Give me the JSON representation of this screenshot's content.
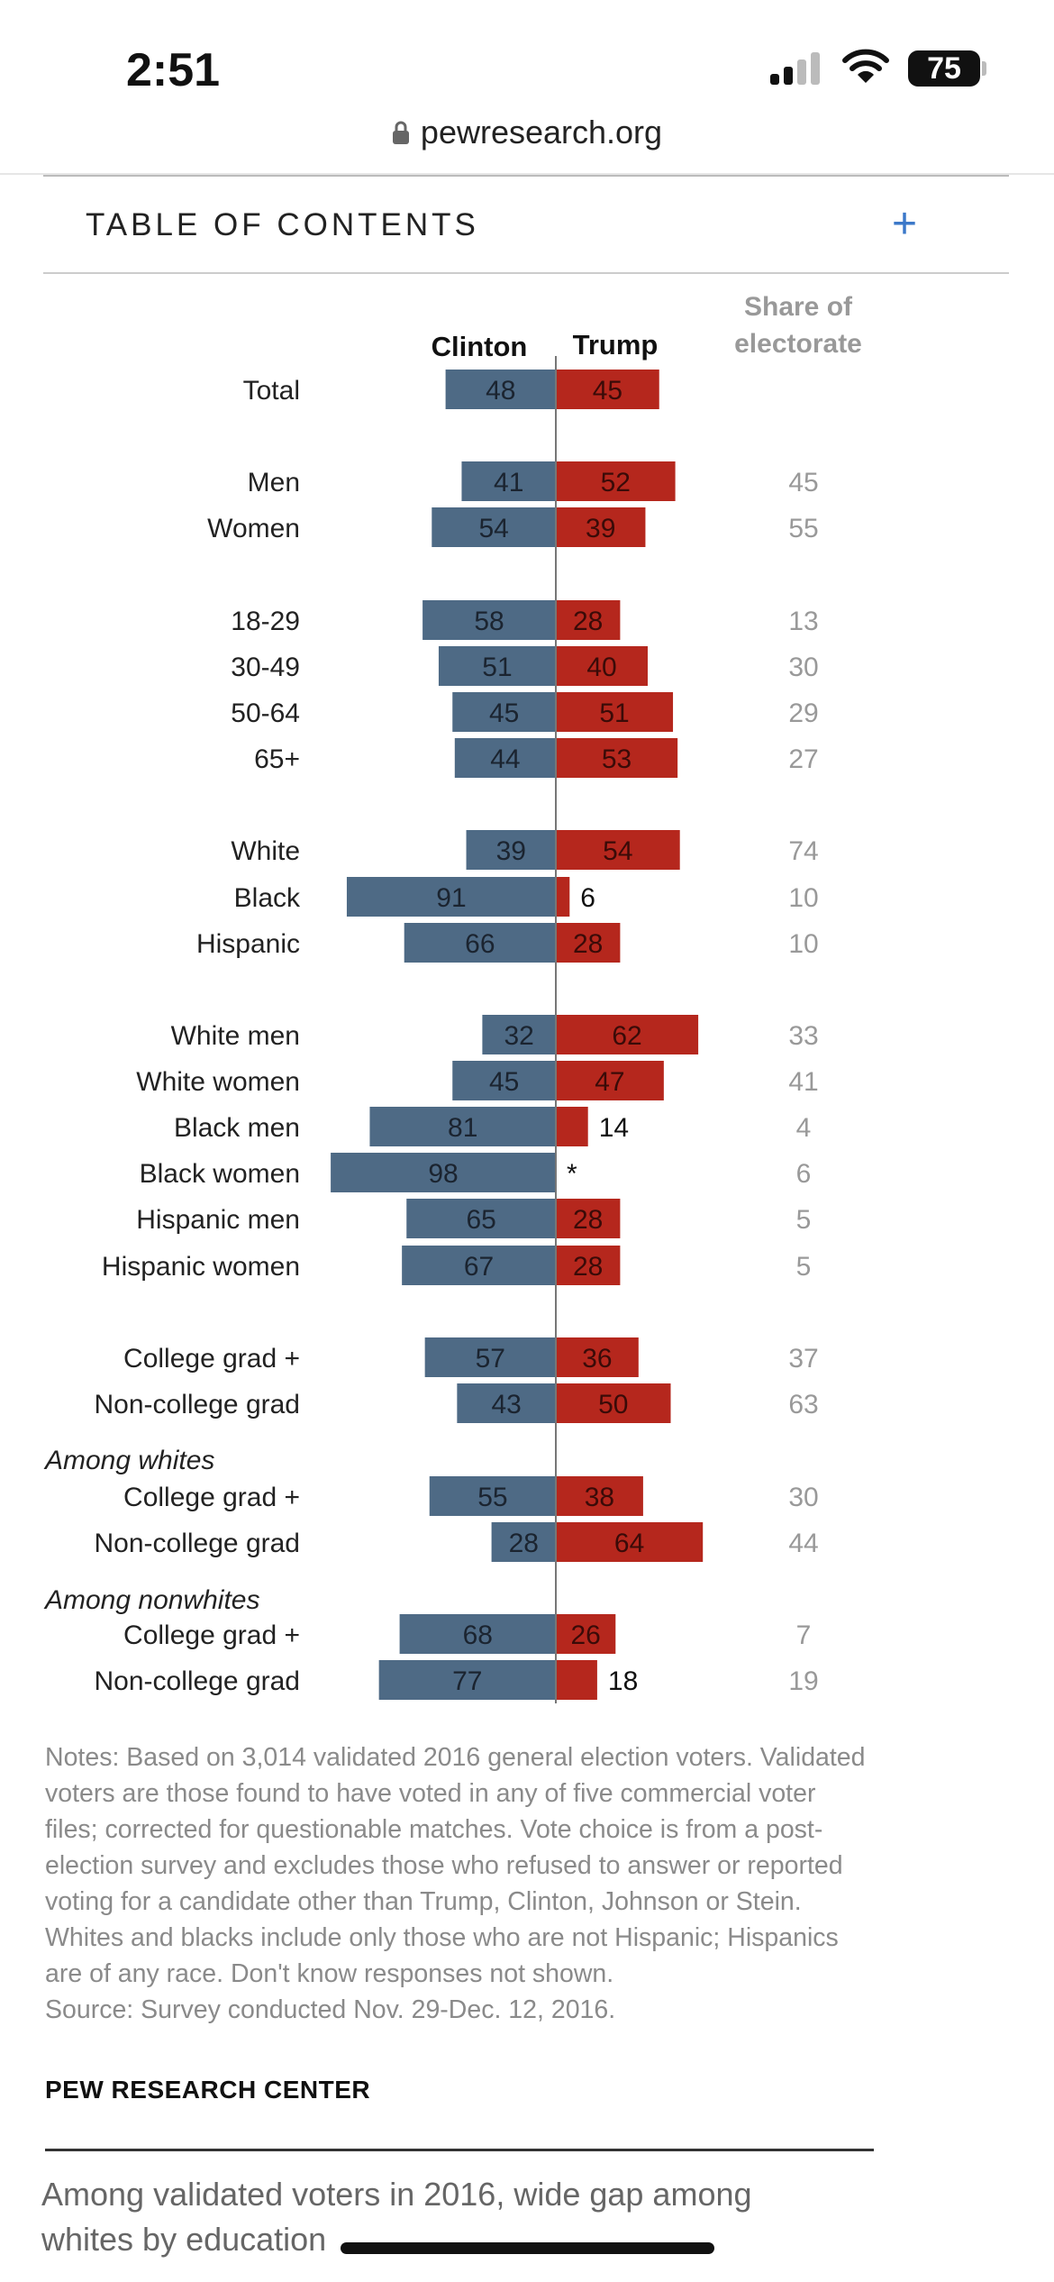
{
  "status_bar": {
    "time": "2:51",
    "battery": "75"
  },
  "browser": {
    "url": "pewresearch.org"
  },
  "toc": {
    "label": "TABLE OF CONTENTS",
    "expand": "+"
  },
  "chart_data": {
    "type": "bar",
    "orientation": "diverging-horizontal",
    "headers": {
      "left": "Clinton",
      "right": "Trump",
      "share_line1": "Share of",
      "share_line2": "electorate"
    },
    "colors": {
      "clinton": "#4e6a85",
      "trump": "#b5271d"
    },
    "rows": [
      {
        "label": "Total",
        "clinton": 48,
        "trump": 45,
        "trump_label": "45",
        "share": ""
      },
      {
        "label": "Men",
        "clinton": 41,
        "trump": 52,
        "trump_label": "52",
        "share": "45"
      },
      {
        "label": "Women",
        "clinton": 54,
        "trump": 39,
        "trump_label": "39",
        "share": "55"
      },
      {
        "label": "18-29",
        "clinton": 58,
        "trump": 28,
        "trump_label": "28",
        "share": "13"
      },
      {
        "label": "30-49",
        "clinton": 51,
        "trump": 40,
        "trump_label": "40",
        "share": "30"
      },
      {
        "label": "50-64",
        "clinton": 45,
        "trump": 51,
        "trump_label": "51",
        "share": "29"
      },
      {
        "label": "65+",
        "clinton": 44,
        "trump": 53,
        "trump_label": "53",
        "share": "27"
      },
      {
        "label": "White",
        "clinton": 39,
        "trump": 54,
        "trump_label": "54",
        "share": "74"
      },
      {
        "label": "Black",
        "clinton": 91,
        "trump": 6,
        "trump_label": "6",
        "share": "10"
      },
      {
        "label": "Hispanic",
        "clinton": 66,
        "trump": 28,
        "trump_label": "28",
        "share": "10"
      },
      {
        "label": "White men",
        "clinton": 32,
        "trump": 62,
        "trump_label": "62",
        "share": "33"
      },
      {
        "label": "White women",
        "clinton": 45,
        "trump": 47,
        "trump_label": "47",
        "share": "41"
      },
      {
        "label": "Black men",
        "clinton": 81,
        "trump": 14,
        "trump_label": "14",
        "share": "4"
      },
      {
        "label": "Black women",
        "clinton": 98,
        "trump": 0,
        "trump_label": "*",
        "share": "6"
      },
      {
        "label": "Hispanic men",
        "clinton": 65,
        "trump": 28,
        "trump_label": "28",
        "share": "5"
      },
      {
        "label": "Hispanic women",
        "clinton": 67,
        "trump": 28,
        "trump_label": "28",
        "share": "5"
      },
      {
        "label": "College grad +",
        "clinton": 57,
        "trump": 36,
        "trump_label": "36",
        "share": "37"
      },
      {
        "label": "Non-college grad",
        "clinton": 43,
        "trump": 50,
        "trump_label": "50",
        "share": "63"
      },
      {
        "label": "College grad +",
        "clinton": 55,
        "trump": 38,
        "trump_label": "38",
        "share": "30",
        "group_heading": "Among whites"
      },
      {
        "label": "Non-college grad",
        "clinton": 28,
        "trump": 64,
        "trump_label": "64",
        "share": "44"
      },
      {
        "label": "College grad +",
        "clinton": 68,
        "trump": 26,
        "trump_label": "26",
        "share": "7",
        "group_heading": "Among nonwhites"
      },
      {
        "label": "Non-college grad",
        "clinton": 77,
        "trump": 18,
        "trump_label": "18",
        "share": "19"
      }
    ]
  },
  "notes": {
    "text": "Notes: Based on 3,014 validated 2016 general election voters. Validated voters are those found to have voted in any of five commercial voter files; corrected for questionable matches. Vote choice is from a post-election survey and excludes those who refused to answer or reported voting for a candidate other than Trump, Clinton, Johnson or Stein. Whites and blacks include only those who are not Hispanic; Hispanics are of any race. Don't know responses not shown.",
    "source": "Source: Survey conducted Nov. 29-Dec. 12, 2016.",
    "org": "PEW RESEARCH CENTER"
  },
  "next_section": {
    "title": "Among validated voters in 2016, wide gap among whites by education"
  }
}
